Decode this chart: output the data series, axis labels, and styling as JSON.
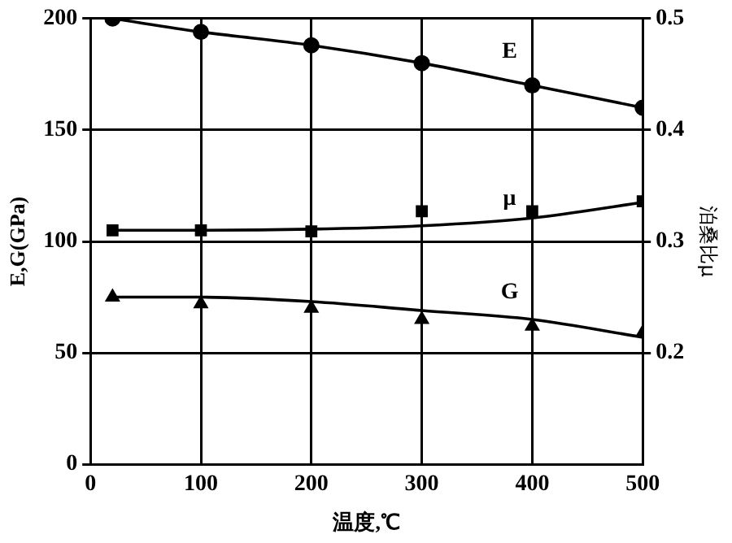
{
  "chart_data": {
    "type": "scatter",
    "xlabel": "温度,℃",
    "ylabel": "E,G(GPa)",
    "y2label": "泊桑比μ",
    "xlim": [
      0,
      500
    ],
    "xticks": [
      0,
      100,
      200,
      300,
      400,
      500
    ],
    "ylim": [
      0,
      200
    ],
    "yticks": [
      0,
      50,
      100,
      150,
      200
    ],
    "y2lim": [
      0.1,
      0.5
    ],
    "y2ticks": [
      0.2,
      0.3,
      0.4,
      0.5
    ],
    "grid": true,
    "legend": false,
    "series": [
      {
        "marker": "circle",
        "color": "#000000",
        "x": [
          20,
          100,
          200,
          300,
          400,
          500
        ],
        "values": [
          200,
          194,
          188,
          180,
          170,
          160
        ]
      },
      {
        "type": "line",
        "name": "E",
        "marker": "none",
        "color": "#000000",
        "x": [
          20,
          100,
          200,
          300,
          400,
          500
        ],
        "values": [
          200,
          194,
          188,
          180,
          170,
          160
        ]
      },
      {
        "marker": "square",
        "axis": "y2",
        "color": "#000000",
        "x": [
          20,
          100,
          200,
          300,
          400,
          500
        ],
        "values": [
          0.31,
          0.31,
          0.309,
          0.327,
          0.327,
          0.336
        ]
      },
      {
        "type": "line",
        "name": "μ",
        "marker": "none",
        "axis": "y2",
        "color": "#000000",
        "x": [
          20,
          100,
          200,
          300,
          400,
          500
        ],
        "values": [
          0.31,
          0.31,
          0.311,
          0.314,
          0.321,
          0.335
        ]
      },
      {
        "marker": "triangle",
        "color": "#000000",
        "x": [
          20,
          100,
          200,
          300,
          400,
          500
        ],
        "values": [
          75,
          72,
          70,
          65,
          62,
          59
        ]
      },
      {
        "type": "line",
        "name": "G",
        "marker": "none",
        "color": "#000000",
        "x": [
          20,
          100,
          200,
          300,
          400,
          500
        ],
        "values": [
          75,
          75,
          73,
          69,
          65,
          57
        ]
      }
    ]
  }
}
